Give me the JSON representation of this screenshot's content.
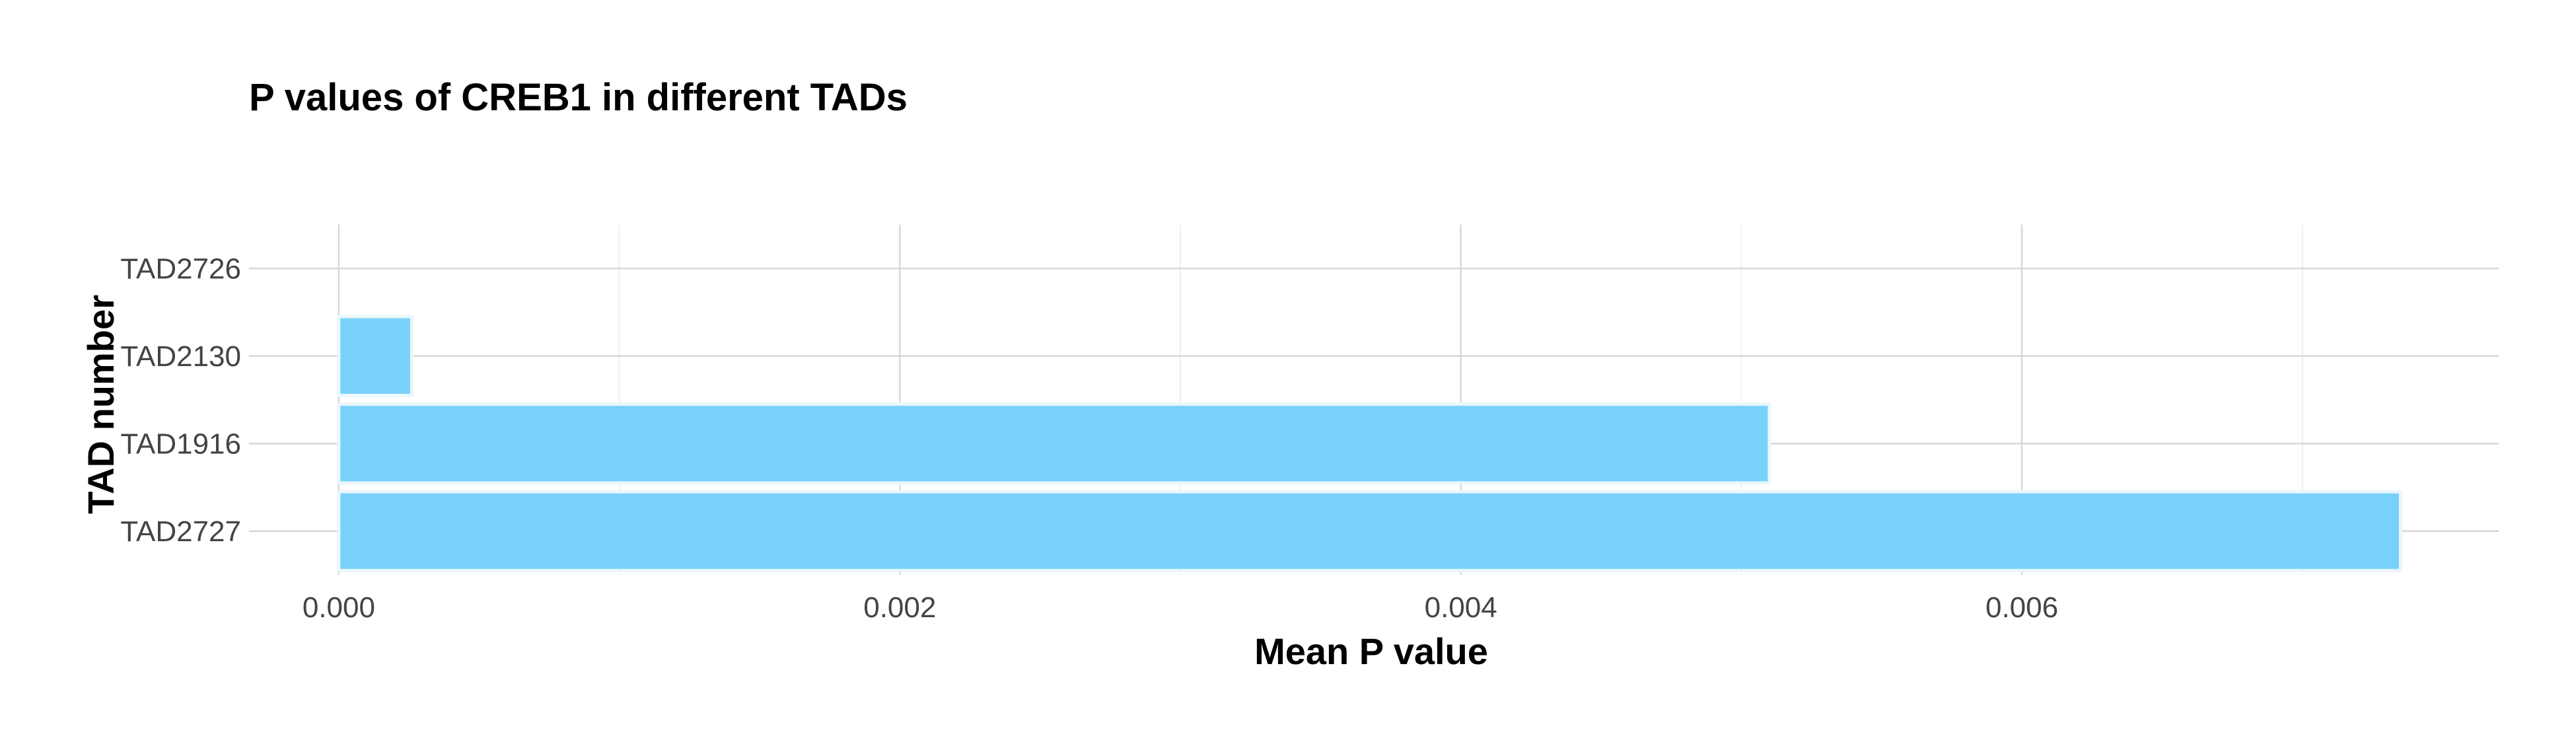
{
  "chart_data": {
    "type": "bar",
    "orientation": "horizontal",
    "title": "P values of CREB1 in different TADs",
    "xlabel": "Mean P value",
    "ylabel": "TAD number",
    "categories": [
      "TAD2727",
      "TAD1916",
      "TAD2130",
      "TAD2726"
    ],
    "values": [
      0.00735,
      0.0051,
      0.00026,
      0
    ],
    "xlim": [
      -0.00032,
      0.0077
    ],
    "xticks": [
      0.0,
      0.002,
      0.004,
      0.006
    ],
    "xtick_labels": [
      "0.000",
      "0.002",
      "0.004",
      "0.006"
    ],
    "grid": true,
    "bar_color": "#75cff9",
    "legend": "none"
  }
}
